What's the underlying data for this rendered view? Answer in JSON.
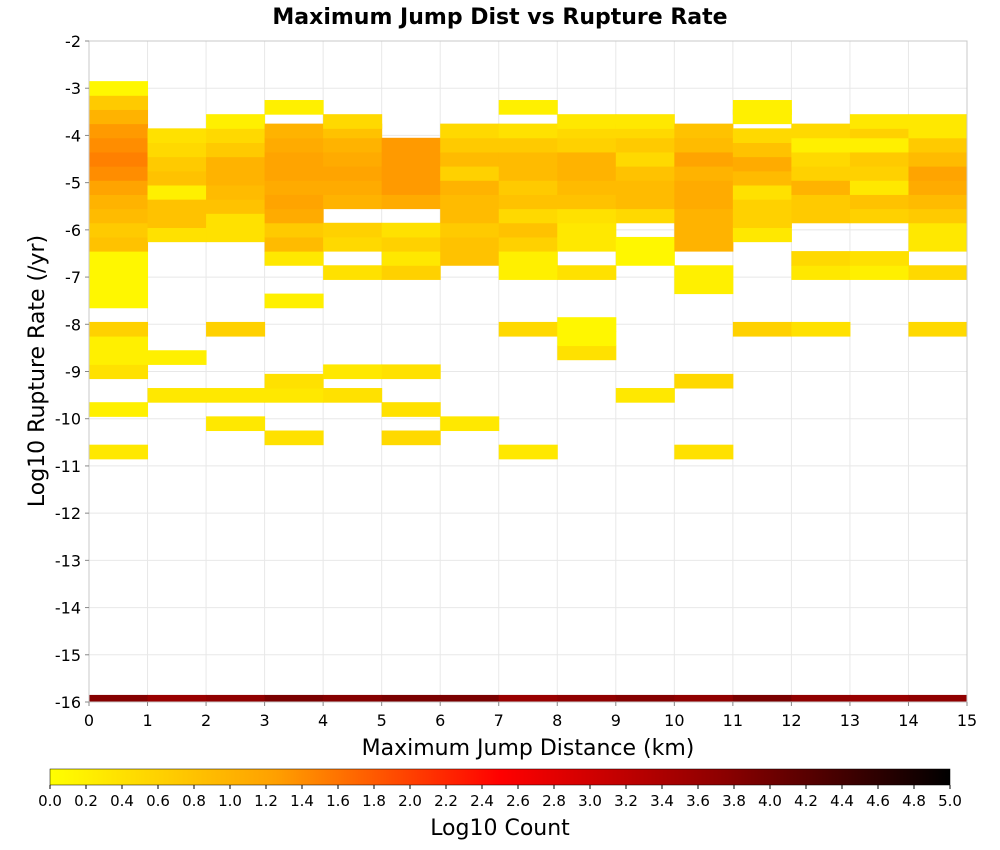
{
  "chart_data": {
    "type": "heatmap",
    "title": "Maximum Jump Dist vs Rupture Rate",
    "xlabel": "Maximum Jump Distance (km)",
    "ylabel": "Log10 Rupture Rate (/yr)",
    "xlim": [
      0,
      15
    ],
    "ylim": [
      -16,
      -2
    ],
    "x_ticks": [
      0,
      1,
      2,
      3,
      4,
      5,
      6,
      7,
      8,
      9,
      10,
      11,
      12,
      13,
      14,
      15
    ],
    "y_ticks": [
      -2,
      -3,
      -4,
      -5,
      -6,
      -7,
      -8,
      -9,
      -10,
      -11,
      -12,
      -13,
      -14,
      -15,
      -16
    ],
    "x_bin_width": 1,
    "y_bin_height": 0.3,
    "grid": true,
    "colorbar": {
      "label": "Log10 Count",
      "range": [
        0,
        5
      ],
      "ticks": [
        "0.0",
        "0.2",
        "0.4",
        "0.6",
        "0.8",
        "1.0",
        "1.2",
        "1.4",
        "1.6",
        "1.8",
        "2.0",
        "2.2",
        "2.4",
        "2.6",
        "2.8",
        "3.0",
        "3.2",
        "3.4",
        "3.6",
        "3.8",
        "4.0",
        "4.2",
        "4.4",
        "4.6",
        "4.8",
        "5.0"
      ],
      "colors": [
        "#ffff00",
        "#ffa000",
        "#ff0000",
        "#8b0000",
        "#000000"
      ],
      "placement": "bottom"
    },
    "columns": [
      {
        "x": 0.5,
        "cells": [
          [
            -16,
            3.8
          ],
          [
            -10.7,
            0.3
          ],
          [
            -9.8,
            0.2
          ],
          [
            -9,
            0.4
          ],
          [
            -8.7,
            0.2
          ],
          [
            -8.4,
            0.2
          ],
          [
            -8.1,
            0.6
          ],
          [
            -7.5,
            0.1
          ],
          [
            -7.2,
            0.1
          ],
          [
            -6.9,
            0.1
          ],
          [
            -6.6,
            0.1
          ],
          [
            -6.3,
            0.8
          ],
          [
            -6,
            0.7
          ],
          [
            -5.7,
            0.9
          ],
          [
            -5.4,
            1.0
          ],
          [
            -5.1,
            1.2
          ],
          [
            -4.8,
            1.4
          ],
          [
            -4.5,
            1.5
          ],
          [
            -4.2,
            1.4
          ],
          [
            -3.9,
            1.3
          ],
          [
            -3.6,
            1.0
          ],
          [
            -3.3,
            0.7
          ],
          [
            -3,
            0.1
          ]
        ]
      },
      {
        "x": 1.5,
        "cells": [
          [
            -16,
            3.6
          ],
          [
            -9.5,
            0.3
          ],
          [
            -8.7,
            0.2
          ],
          [
            -6.1,
            0.4
          ],
          [
            -5.8,
            0.8
          ],
          [
            -5.5,
            0.8
          ],
          [
            -5.2,
            0.2
          ],
          [
            -4.9,
            0.8
          ],
          [
            -4.6,
            0.7
          ],
          [
            -4.3,
            0.5
          ],
          [
            -4,
            0.4
          ]
        ]
      },
      {
        "x": 2.5,
        "cells": [
          [
            -16,
            3.7
          ],
          [
            -10.1,
            0.3
          ],
          [
            -9.5,
            0.3
          ],
          [
            -8.1,
            0.6
          ],
          [
            -6.1,
            0.4
          ],
          [
            -5.8,
            0.4
          ],
          [
            -5.5,
            0.8
          ],
          [
            -5.2,
            0.9
          ],
          [
            -4.9,
            1.0
          ],
          [
            -4.6,
            1.0
          ],
          [
            -4.3,
            0.7
          ],
          [
            -4,
            0.5
          ],
          [
            -3.7,
            0.2
          ]
        ]
      },
      {
        "x": 3.5,
        "cells": [
          [
            -16,
            3.9
          ],
          [
            -10.4,
            0.4
          ],
          [
            -9.5,
            0.3
          ],
          [
            -9.2,
            0.4
          ],
          [
            -7.5,
            0.2
          ],
          [
            -6.6,
            0.3
          ],
          [
            -6.3,
            0.9
          ],
          [
            -6,
            0.7
          ],
          [
            -5.7,
            1.1
          ],
          [
            -5.4,
            1.2
          ],
          [
            -5.1,
            1.1
          ],
          [
            -4.8,
            1.2
          ],
          [
            -4.5,
            1.2
          ],
          [
            -4.2,
            1.1
          ],
          [
            -3.9,
            1.0
          ],
          [
            -3.4,
            0.2
          ]
        ]
      },
      {
        "x": 4.5,
        "cells": [
          [
            -16,
            3.8
          ],
          [
            -9.5,
            0.4
          ],
          [
            -9,
            0.3
          ],
          [
            -6.9,
            0.4
          ],
          [
            -6.3,
            0.5
          ],
          [
            -6,
            0.6
          ],
          [
            -5.4,
            1.0
          ],
          [
            -5.1,
            1.1
          ],
          [
            -4.8,
            1.2
          ],
          [
            -4.5,
            1.1
          ],
          [
            -4.2,
            1.0
          ],
          [
            -3.9,
            0.8
          ],
          [
            -3.7,
            0.5
          ]
        ]
      },
      {
        "x": 5.5,
        "cells": [
          [
            -16,
            3.9
          ],
          [
            -10.4,
            0.5
          ],
          [
            -9.8,
            0.4
          ],
          [
            -9,
            0.4
          ],
          [
            -6.9,
            0.6
          ],
          [
            -6.6,
            0.3
          ],
          [
            -6.3,
            0.6
          ],
          [
            -6,
            0.4
          ],
          [
            -5.4,
            1.1
          ],
          [
            -5.1,
            1.3
          ],
          [
            -4.8,
            1.3
          ],
          [
            -4.5,
            1.3
          ],
          [
            -4.2,
            1.3
          ]
        ]
      },
      {
        "x": 6.5,
        "cells": [
          [
            -16,
            3.9
          ],
          [
            -10.1,
            0.3
          ],
          [
            -6.6,
            0.8
          ],
          [
            -6.3,
            0.8
          ],
          [
            -6,
            0.7
          ],
          [
            -5.7,
            0.9
          ],
          [
            -5.4,
            0.9
          ],
          [
            -5.1,
            1.0
          ],
          [
            -4.8,
            0.6
          ],
          [
            -4.5,
            0.9
          ],
          [
            -4.2,
            0.7
          ],
          [
            -3.9,
            0.5
          ]
        ]
      },
      {
        "x": 7.5,
        "cells": [
          [
            -16,
            3.6
          ],
          [
            -10.7,
            0.3
          ],
          [
            -8.1,
            0.5
          ],
          [
            -6.9,
            0.2
          ],
          [
            -6.6,
            0.2
          ],
          [
            -6.3,
            0.6
          ],
          [
            -6,
            0.8
          ],
          [
            -5.7,
            0.5
          ],
          [
            -5.4,
            0.8
          ],
          [
            -5.1,
            0.7
          ],
          [
            -4.8,
            0.9
          ],
          [
            -4.5,
            0.9
          ],
          [
            -4.2,
            0.7
          ],
          [
            -3.9,
            0.4
          ],
          [
            -3.4,
            0.2
          ]
        ]
      },
      {
        "x": 8.5,
        "cells": [
          [
            -16,
            3.7
          ],
          [
            -8.6,
            0.4
          ],
          [
            -8.3,
            0.1
          ],
          [
            -8,
            0.1
          ],
          [
            -6.9,
            0.4
          ],
          [
            -6.3,
            0.3
          ],
          [
            -6,
            0.3
          ],
          [
            -5.7,
            0.4
          ],
          [
            -5.4,
            0.8
          ],
          [
            -5.1,
            0.9
          ],
          [
            -4.8,
            1.0
          ],
          [
            -4.5,
            1.0
          ],
          [
            -4.2,
            0.6
          ],
          [
            -3.9,
            0.5
          ],
          [
            -3.7,
            0.3
          ]
        ]
      },
      {
        "x": 9.5,
        "cells": [
          [
            -16,
            3.8
          ],
          [
            -9.5,
            0.3
          ],
          [
            -6.6,
            0.1
          ],
          [
            -6.3,
            0.1
          ],
          [
            -5.7,
            0.5
          ],
          [
            -5.4,
            0.9
          ],
          [
            -5.1,
            0.9
          ],
          [
            -4.8,
            0.8
          ],
          [
            -4.5,
            0.5
          ],
          [
            -4.2,
            0.7
          ],
          [
            -3.9,
            0.5
          ],
          [
            -3.7,
            0.3
          ]
        ]
      },
      {
        "x": 10.5,
        "cells": [
          [
            -16,
            3.7
          ],
          [
            -10.7,
            0.4
          ],
          [
            -9.2,
            0.5
          ],
          [
            -7.2,
            0.2
          ],
          [
            -6.9,
            0.2
          ],
          [
            -6.3,
            1.0
          ],
          [
            -6,
            1.0
          ],
          [
            -5.7,
            1.0
          ],
          [
            -5.4,
            1.1
          ],
          [
            -5.1,
            1.1
          ],
          [
            -4.8,
            1.0
          ],
          [
            -4.5,
            1.2
          ],
          [
            -4.2,
            0.9
          ],
          [
            -3.9,
            0.8
          ]
        ]
      },
      {
        "x": 11.5,
        "cells": [
          [
            -16,
            3.9
          ],
          [
            -8.1,
            0.6
          ],
          [
            -6.1,
            0.3
          ],
          [
            -5.8,
            0.6
          ],
          [
            -5.5,
            0.6
          ],
          [
            -5.2,
            0.4
          ],
          [
            -4.9,
            0.9
          ],
          [
            -4.6,
            1.1
          ],
          [
            -4.3,
            0.8
          ],
          [
            -4,
            0.5
          ],
          [
            -3.6,
            0.2
          ],
          [
            -3.4,
            0.2
          ]
        ]
      },
      {
        "x": 12.5,
        "cells": [
          [
            -16,
            3.7
          ],
          [
            -8.1,
            0.4
          ],
          [
            -6.9,
            0.3
          ],
          [
            -6.6,
            0.5
          ],
          [
            -5.7,
            0.7
          ],
          [
            -5.4,
            0.7
          ],
          [
            -5.1,
            1.0
          ],
          [
            -4.8,
            0.6
          ],
          [
            -4.5,
            0.5
          ],
          [
            -4.2,
            0.2
          ],
          [
            -3.9,
            0.5
          ]
        ]
      },
      {
        "x": 13.5,
        "cells": [
          [
            -16,
            3.6
          ],
          [
            -6.9,
            0.2
          ],
          [
            -6.6,
            0.4
          ],
          [
            -5.7,
            0.6
          ],
          [
            -5.4,
            0.8
          ],
          [
            -5.1,
            0.3
          ],
          [
            -4.8,
            0.6
          ],
          [
            -4.5,
            0.7
          ],
          [
            -4.2,
            0.2
          ],
          [
            -3.9,
            0.6
          ],
          [
            -3.7,
            0.3
          ]
        ]
      },
      {
        "x": 14.5,
        "cells": [
          [
            -16,
            3.7
          ],
          [
            -8.1,
            0.5
          ],
          [
            -6.9,
            0.5
          ],
          [
            -6.3,
            0.3
          ],
          [
            -6,
            0.3
          ],
          [
            -5.7,
            0.7
          ],
          [
            -5.4,
            0.9
          ],
          [
            -5.1,
            1.1
          ],
          [
            -4.8,
            1.2
          ],
          [
            -4.5,
            0.9
          ],
          [
            -4.2,
            0.7
          ],
          [
            -3.9,
            0.3
          ],
          [
            -3.7,
            0.3
          ]
        ]
      }
    ]
  }
}
